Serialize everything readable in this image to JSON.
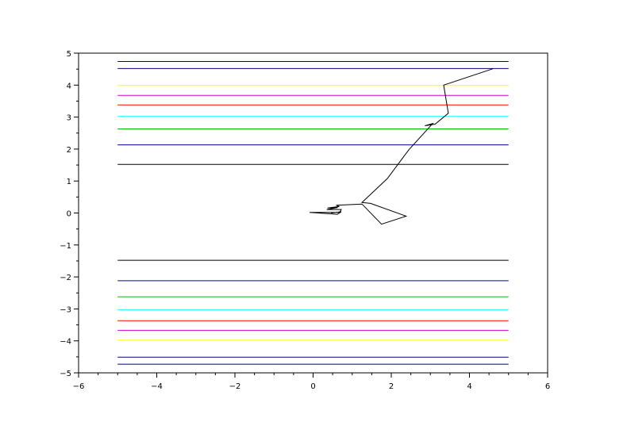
{
  "chart_data": {
    "type": "line",
    "title": "",
    "xlabel": "",
    "ylabel": "",
    "xlim": [
      -6,
      6
    ],
    "ylim": [
      -5,
      5
    ],
    "grid": false,
    "x_ticks": [
      -6,
      -4,
      -2,
      0,
      2,
      4,
      6
    ],
    "y_ticks": [
      -5,
      -4,
      -3,
      -2,
      -1,
      0,
      1,
      2,
      3,
      4,
      5
    ],
    "x_tick_labels": [
      "−6",
      "−4",
      "−2",
      "0",
      "2",
      "4",
      "6"
    ],
    "y_tick_labels": [
      "−5",
      "−4",
      "−3",
      "−2",
      "−1",
      "0",
      "1",
      "2",
      "3",
      "4",
      "5"
    ],
    "horizontal_lines": [
      {
        "y": 4.74,
        "x_start": -5,
        "x_end": 5,
        "color": "#000080"
      },
      {
        "y": 4.52,
        "x_start": -5,
        "x_end": 5,
        "color": "#000080"
      },
      {
        "y": 3.99,
        "x_start": -5,
        "x_end": 5,
        "color": "#ffff00"
      },
      {
        "y": 3.68,
        "x_start": -5,
        "x_end": 5,
        "color": "#cc00cc"
      },
      {
        "y": 3.38,
        "x_start": -5,
        "x_end": 5,
        "color": "#ff0000"
      },
      {
        "y": 3.02,
        "x_start": -5,
        "x_end": 5,
        "color": "#00ffff"
      },
      {
        "y": 2.63,
        "x_start": -5,
        "x_end": 5,
        "color": "#00bb00"
      },
      {
        "y": 2.13,
        "x_start": -5,
        "x_end": 5,
        "color": "#0000aa"
      },
      {
        "y": 1.52,
        "x_start": -5,
        "x_end": 5,
        "color": "#000000"
      },
      {
        "y": -1.48,
        "x_start": -5,
        "x_end": 5,
        "color": "#000000"
      },
      {
        "y": -2.12,
        "x_start": -5,
        "x_end": 5,
        "color": "#0000aa"
      },
      {
        "y": -2.62,
        "x_start": -5,
        "x_end": 5,
        "color": "#00bb00"
      },
      {
        "y": -3.02,
        "x_start": -5,
        "x_end": 5,
        "color": "#00ffff"
      },
      {
        "y": -3.37,
        "x_start": -5,
        "x_end": 5,
        "color": "#ff0000"
      },
      {
        "y": -3.67,
        "x_start": -5,
        "x_end": 5,
        "color": "#cc00cc"
      },
      {
        "y": -3.98,
        "x_start": -5,
        "x_end": 5,
        "color": "#ffff00"
      },
      {
        "y": -4.51,
        "x_start": -5,
        "x_end": 5,
        "color": "#000080"
      },
      {
        "y": -4.73,
        "x_start": -5,
        "x_end": 5,
        "color": "#000080"
      }
    ],
    "series": [
      {
        "color": "#000000",
        "x": [
          4.6,
          3.34,
          3.46,
          3.12,
          2.86,
          3.06,
          2.45,
          1.9,
          1.25,
          1.47,
          2.38,
          1.75,
          1.25,
          0.59,
          0.67,
          0.37,
          0.63,
          0.35,
          0.72,
          0.68,
          -0.09,
          0.62,
          0.72,
          0.46
        ],
        "y": [
          4.51,
          4.0,
          3.12,
          2.78,
          2.73,
          2.8,
          1.98,
          1.08,
          0.33,
          0.3,
          -0.1,
          -0.35,
          0.28,
          0.24,
          0.2,
          0.16,
          0.17,
          0.11,
          0.11,
          0.02,
          0.02,
          -0.04,
          0.04,
          0.0
        ]
      }
    ]
  }
}
